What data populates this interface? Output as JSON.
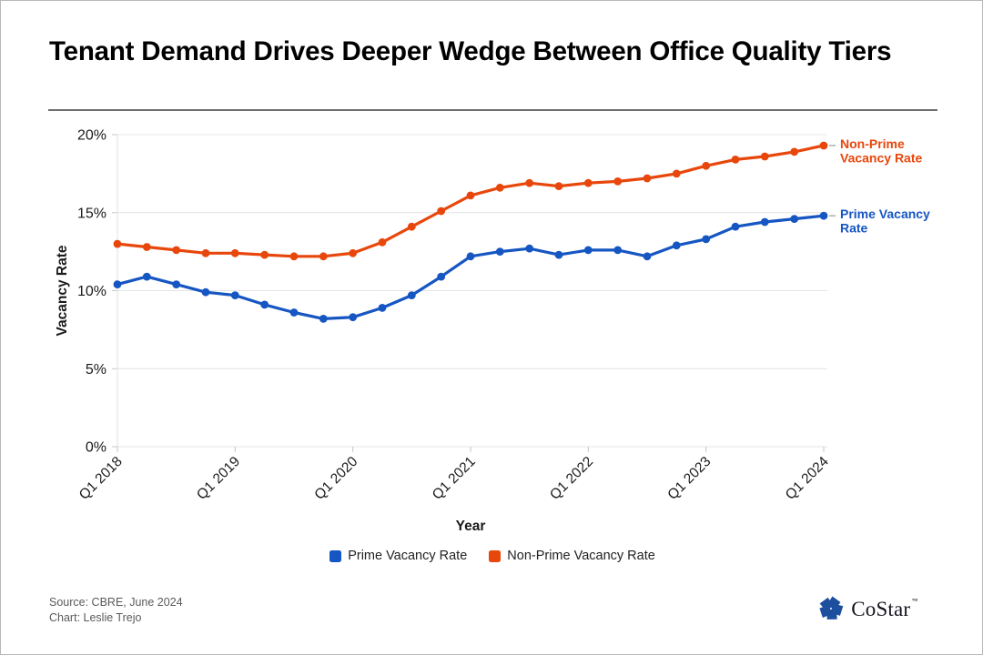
{
  "header": {
    "title": "Tenant Demand Drives Deeper Wedge Between Office Quality Tiers"
  },
  "chart_data": {
    "type": "line",
    "title": "Tenant Demand Drives Deeper Wedge Between Office Quality Tiers",
    "xlabel": "Year",
    "ylabel": "Vacancy Rate",
    "ylim": [
      0,
      20
    ],
    "grid": "horizontal",
    "legend_position": "bottom",
    "x_frequency": "quarterly",
    "y_ticks": [
      {
        "value": 0,
        "label": "0%"
      },
      {
        "value": 5,
        "label": "5%"
      },
      {
        "value": 10,
        "label": "10%"
      },
      {
        "value": 15,
        "label": "15%"
      },
      {
        "value": 20,
        "label": "20%"
      }
    ],
    "x_ticks": [
      {
        "index": 0,
        "label": "Q1 2018"
      },
      {
        "index": 4,
        "label": "Q1 2019"
      },
      {
        "index": 8,
        "label": "Q1 2020"
      },
      {
        "index": 12,
        "label": "Q1 2021"
      },
      {
        "index": 16,
        "label": "Q1 2022"
      },
      {
        "index": 20,
        "label": "Q1 2023"
      },
      {
        "index": 24,
        "label": "Q1 2024"
      }
    ],
    "series": [
      {
        "name": "Prime Vacancy Rate",
        "color": "#1656C2",
        "end_label_lines": [
          "Prime Vacancy",
          "Rate"
        ],
        "values": [
          10.4,
          10.9,
          10.4,
          9.9,
          9.7,
          9.1,
          8.6,
          8.2,
          8.3,
          8.9,
          9.7,
          10.9,
          12.2,
          12.5,
          12.7,
          12.3,
          12.6,
          12.6,
          12.2,
          12.9,
          13.3,
          14.1,
          14.4,
          14.6,
          14.8
        ]
      },
      {
        "name": "Non-Prime Vacancy Rate",
        "color": "#E8470C",
        "end_label_lines": [
          "Non-Prime",
          "Vacancy Rate"
        ],
        "values": [
          13.0,
          12.8,
          12.6,
          12.4,
          12.4,
          12.3,
          12.2,
          12.2,
          12.4,
          13.1,
          14.1,
          15.1,
          16.1,
          16.6,
          16.9,
          16.7,
          16.9,
          17.0,
          17.2,
          17.5,
          18.0,
          18.4,
          18.6,
          18.9,
          19.3
        ]
      }
    ]
  },
  "legend": {
    "items": [
      {
        "label": "Prime Vacancy Rate",
        "color": "#1656C2"
      },
      {
        "label": "Non-Prime Vacancy Rate",
        "color": "#E8470C"
      }
    ]
  },
  "footer": {
    "source": "Source: CBRE, June 2024",
    "credit": "Chart: Leslie Trejo",
    "logo": {
      "text": "CoStar",
      "tm": "™",
      "icon_color": "#1d4f9e"
    }
  }
}
